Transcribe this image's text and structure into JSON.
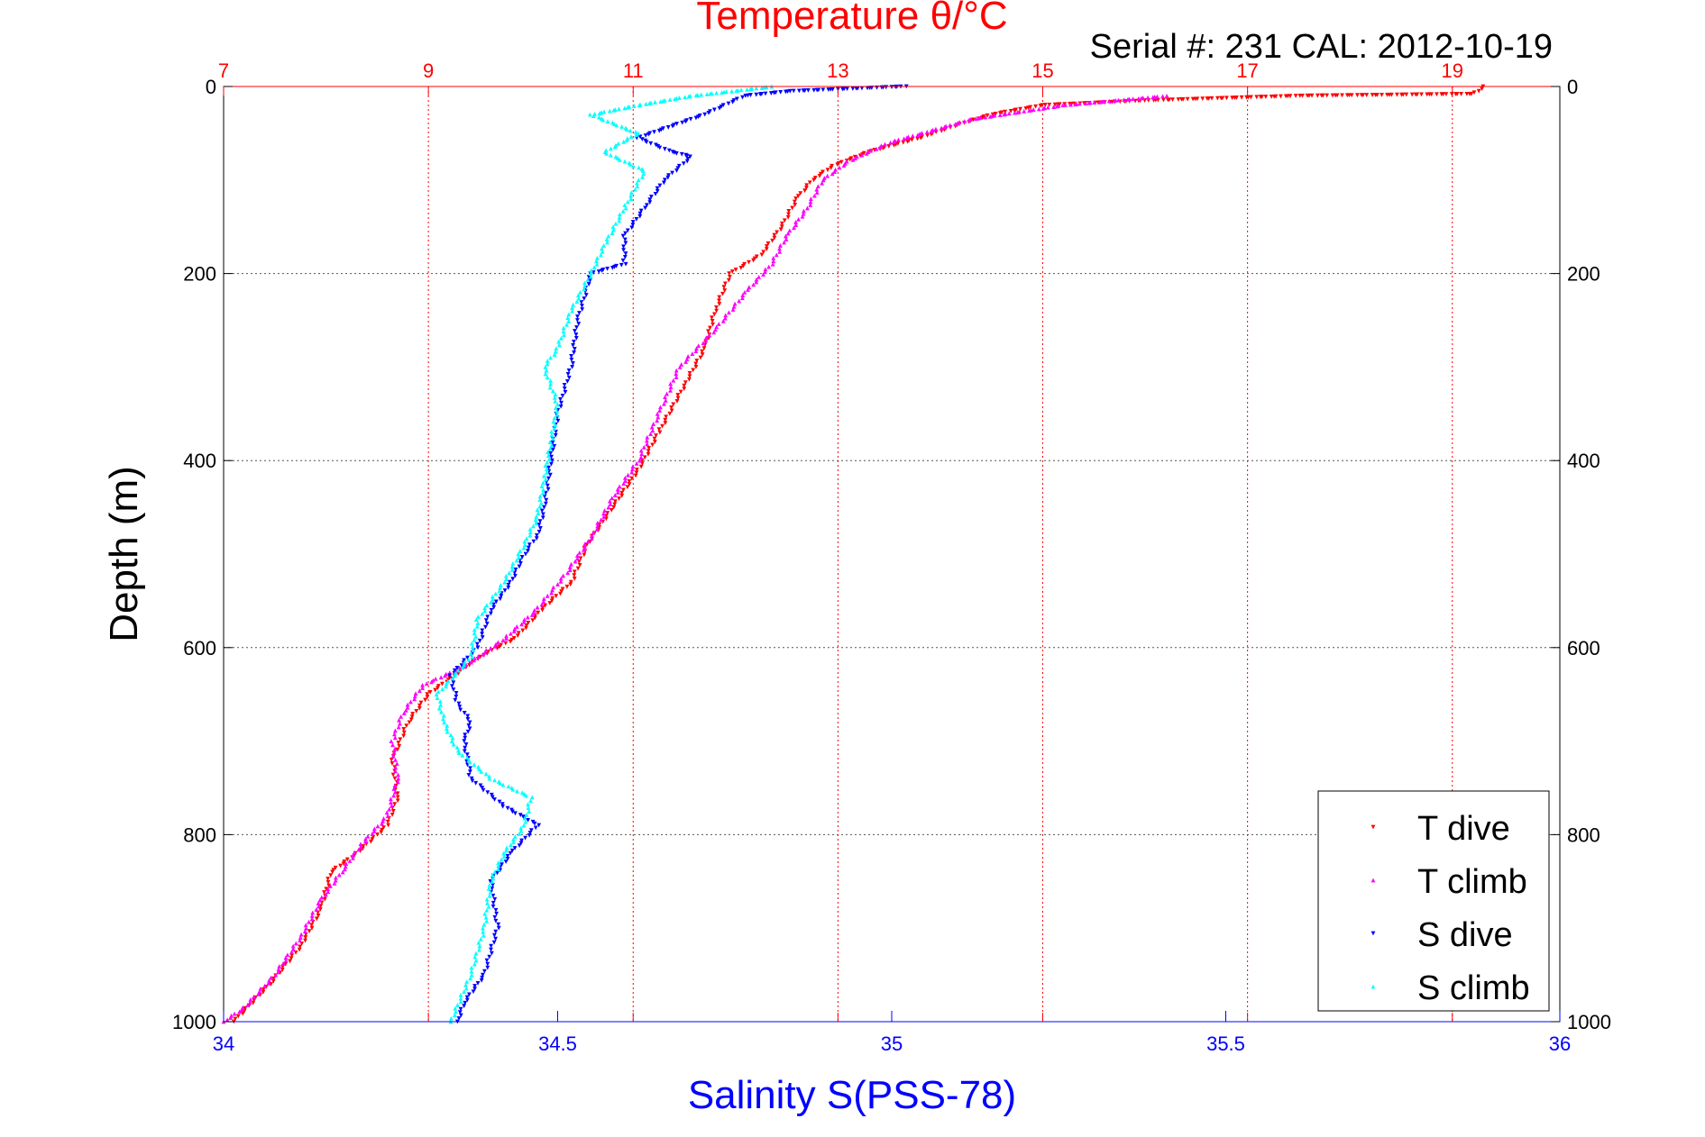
{
  "chart_data": {
    "type": "scatter",
    "title": "Temperature θ/°C",
    "header": "Serial #: 231  CAL: 2012-10-19",
    "ylabel": "Depth (m)",
    "xlabel_bottom": "Salinity S(PSS-78)",
    "xlabel_top": "Temperature θ/°C",
    "ylim": [
      0,
      1000
    ],
    "y_reversed": true,
    "y_ticks": [
      0,
      200,
      400,
      600,
      800,
      1000
    ],
    "x_bottom": {
      "label": "Salinity S(PSS-78)",
      "lim": [
        34,
        36
      ],
      "ticks": [
        34,
        34.5,
        35,
        35.5,
        36
      ],
      "color": "#0000ff"
    },
    "x_top": {
      "label": "Temperature θ/°C",
      "lim": [
        7,
        20.05
      ],
      "ticks": [
        7,
        9,
        11,
        13,
        15,
        17,
        19
      ],
      "color": "#ff0000"
    },
    "grid": true,
    "legend_position": "bottom-right",
    "series": [
      {
        "name": "T dive",
        "axis": "temperature",
        "color": "#ff0000",
        "marker": "triangle-down",
        "points": [
          [
            19.3,
            0
          ],
          [
            19.25,
            5
          ],
          [
            19.2,
            8
          ],
          [
            17.5,
            10
          ],
          [
            16,
            15
          ],
          [
            15,
            20
          ],
          [
            14.5,
            30
          ],
          [
            14.2,
            40
          ],
          [
            13.8,
            55
          ],
          [
            13.3,
            70
          ],
          [
            12.95,
            85
          ],
          [
            12.75,
            100
          ],
          [
            12.6,
            120
          ],
          [
            12.45,
            150
          ],
          [
            12.25,
            180
          ],
          [
            11.95,
            200
          ],
          [
            11.8,
            240
          ],
          [
            11.7,
            280
          ],
          [
            11.5,
            320
          ],
          [
            11.25,
            370
          ],
          [
            11.05,
            410
          ],
          [
            10.8,
            450
          ],
          [
            10.55,
            490
          ],
          [
            10.4,
            530
          ],
          [
            10.1,
            560
          ],
          [
            9.85,
            590
          ],
          [
            9.5,
            610
          ],
          [
            9.25,
            630
          ],
          [
            9,
            650
          ],
          [
            8.8,
            680
          ],
          [
            8.65,
            720
          ],
          [
            8.7,
            760
          ],
          [
            8.6,
            790
          ],
          [
            8.3,
            820
          ],
          [
            8.05,
            840
          ],
          [
            7.95,
            880
          ],
          [
            7.75,
            920
          ],
          [
            7.45,
            960
          ],
          [
            7.1,
            1000
          ]
        ]
      },
      {
        "name": "T climb",
        "axis": "temperature",
        "color": "#ff00ff",
        "marker": "triangle-up",
        "points": [
          [
            16.2,
            10
          ],
          [
            15.2,
            20
          ],
          [
            14.3,
            35
          ],
          [
            13.5,
            60
          ],
          [
            13.1,
            80
          ],
          [
            12.85,
            100
          ],
          [
            12.7,
            130
          ],
          [
            12.5,
            160
          ],
          [
            12.35,
            190
          ],
          [
            12.1,
            220
          ],
          [
            11.8,
            260
          ],
          [
            11.45,
            300
          ],
          [
            11.25,
            350
          ],
          [
            11.05,
            400
          ],
          [
            10.8,
            440
          ],
          [
            10.6,
            480
          ],
          [
            10.35,
            520
          ],
          [
            10.05,
            560
          ],
          [
            9.75,
            590
          ],
          [
            9.35,
            620
          ],
          [
            8.95,
            640
          ],
          [
            8.75,
            670
          ],
          [
            8.65,
            700
          ],
          [
            8.7,
            740
          ],
          [
            8.6,
            780
          ],
          [
            8.35,
            810
          ],
          [
            8.15,
            840
          ],
          [
            7.95,
            870
          ],
          [
            7.75,
            910
          ],
          [
            7.5,
            950
          ],
          [
            7.2,
            985
          ],
          [
            7,
            1000
          ]
        ]
      },
      {
        "name": "S dive",
        "axis": "salinity",
        "color": "#0000ff",
        "marker": "triangle-down",
        "points": [
          [
            35.02,
            0
          ],
          [
            34.85,
            5
          ],
          [
            34.78,
            10
          ],
          [
            34.72,
            30
          ],
          [
            34.62,
            55
          ],
          [
            34.67,
            70
          ],
          [
            34.7,
            75
          ],
          [
            34.66,
            100
          ],
          [
            34.63,
            130
          ],
          [
            34.6,
            160
          ],
          [
            34.6,
            190
          ],
          [
            34.55,
            200
          ],
          [
            34.53,
            250
          ],
          [
            34.52,
            300
          ],
          [
            34.5,
            350
          ],
          [
            34.49,
            400
          ],
          [
            34.48,
            450
          ],
          [
            34.47,
            480
          ],
          [
            34.45,
            500
          ],
          [
            34.43,
            530
          ],
          [
            34.4,
            560
          ],
          [
            34.38,
            600
          ],
          [
            34.34,
            630
          ],
          [
            34.35,
            660
          ],
          [
            34.37,
            680
          ],
          [
            34.36,
            700
          ],
          [
            34.37,
            740
          ],
          [
            34.42,
            770
          ],
          [
            34.47,
            790
          ],
          [
            34.43,
            820
          ],
          [
            34.4,
            850
          ],
          [
            34.41,
            900
          ],
          [
            34.39,
            950
          ],
          [
            34.36,
            980
          ],
          [
            34.35,
            1000
          ]
        ]
      },
      {
        "name": "S climb",
        "axis": "salinity",
        "color": "#00ffff",
        "marker": "triangle-up",
        "points": [
          [
            34.82,
            0
          ],
          [
            34.7,
            10
          ],
          [
            34.62,
            20
          ],
          [
            34.55,
            30
          ],
          [
            34.62,
            50
          ],
          [
            34.57,
            70
          ],
          [
            34.63,
            90
          ],
          [
            34.6,
            130
          ],
          [
            34.57,
            170
          ],
          [
            34.55,
            200
          ],
          [
            34.52,
            240
          ],
          [
            34.5,
            280
          ],
          [
            34.48,
            300
          ],
          [
            34.5,
            340
          ],
          [
            34.49,
            380
          ],
          [
            34.48,
            420
          ],
          [
            34.47,
            460
          ],
          [
            34.45,
            490
          ],
          [
            34.42,
            530
          ],
          [
            34.38,
            570
          ],
          [
            34.37,
            610
          ],
          [
            34.32,
            650
          ],
          [
            34.33,
            680
          ],
          [
            34.35,
            710
          ],
          [
            34.4,
            740
          ],
          [
            34.46,
            760
          ],
          [
            34.45,
            790
          ],
          [
            34.42,
            820
          ],
          [
            34.4,
            850
          ],
          [
            34.39,
            900
          ],
          [
            34.37,
            950
          ],
          [
            34.34,
            1000
          ]
        ]
      }
    ]
  }
}
